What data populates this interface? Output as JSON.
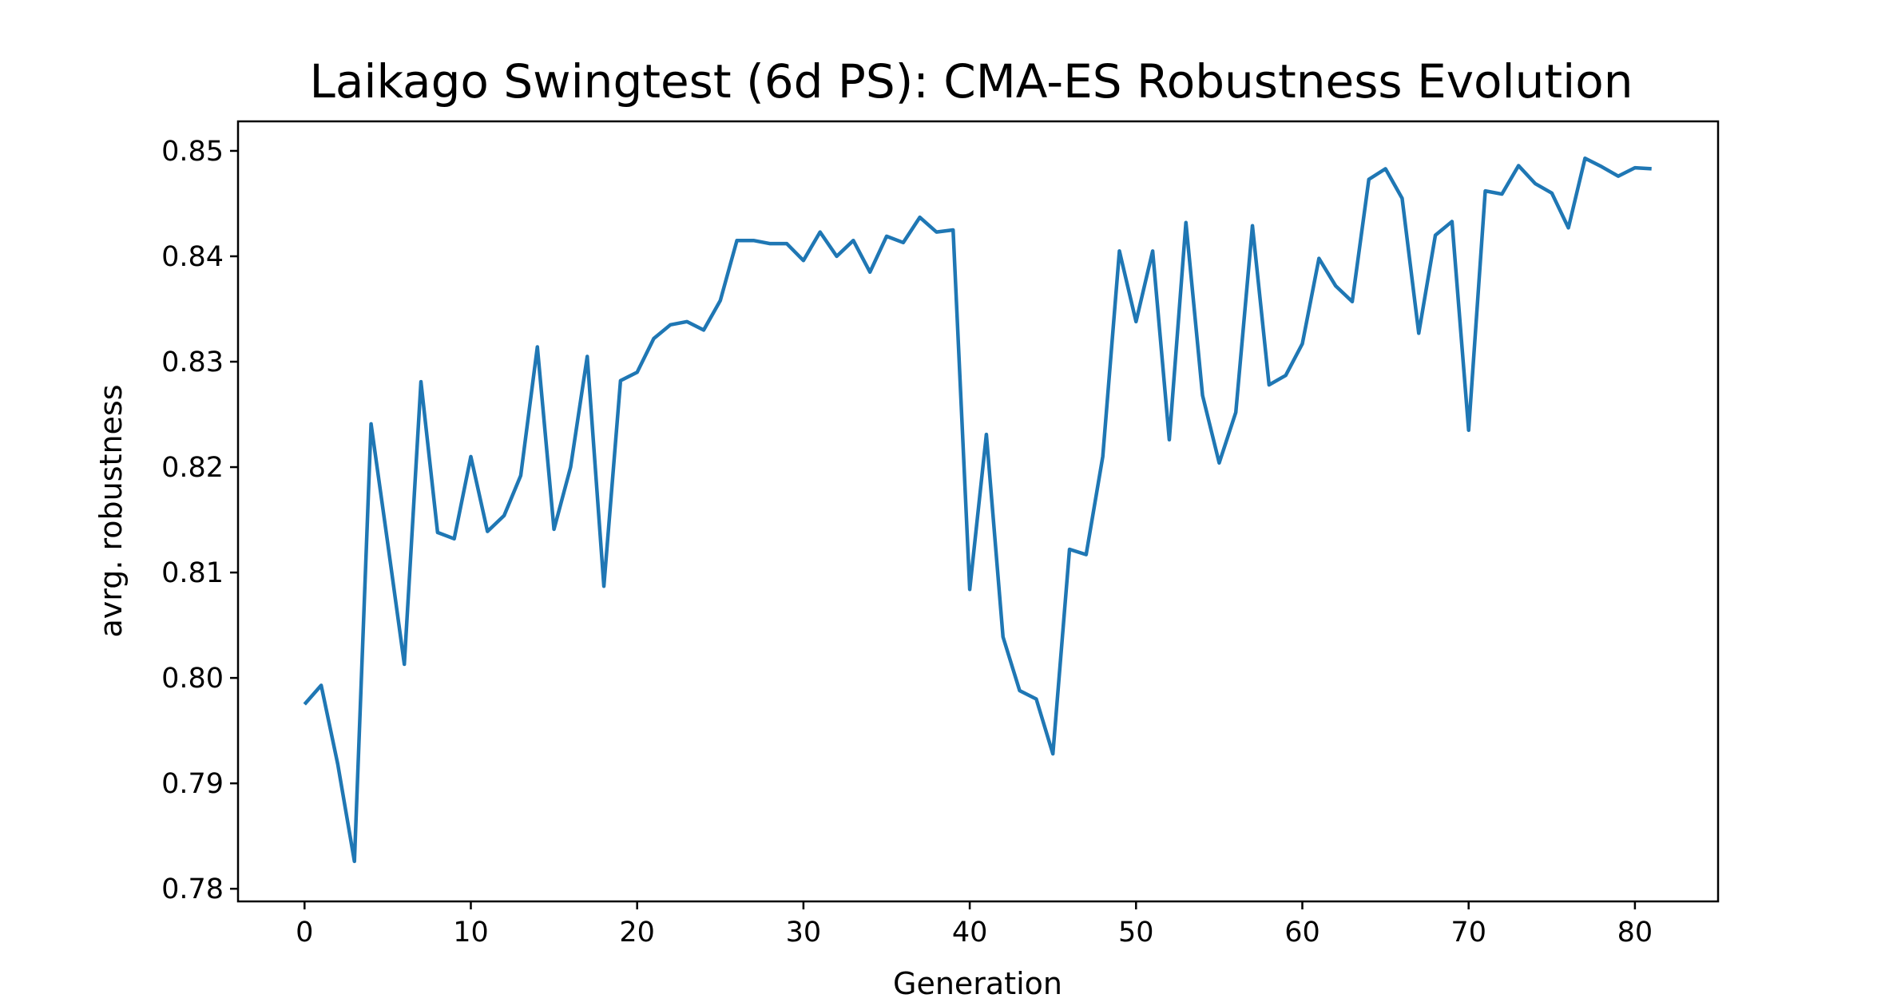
{
  "chart_data": {
    "type": "line",
    "title": "Laikago Swingtest (6d PS): CMA-ES Robustness Evolution",
    "xlabel": "Generation",
    "ylabel": "avrg. robustness",
    "xlim": [
      -4,
      85
    ],
    "ylim": [
      0.7788,
      0.8528
    ],
    "xticks": [
      0,
      10,
      20,
      30,
      40,
      50,
      60,
      70,
      80
    ],
    "yticks": [
      0.78,
      0.79,
      0.8,
      0.81,
      0.82,
      0.83,
      0.84,
      0.85
    ],
    "xtick_labels": [
      "0",
      "10",
      "20",
      "30",
      "40",
      "50",
      "60",
      "70",
      "80"
    ],
    "ytick_labels": [
      "0.78",
      "0.79",
      "0.80",
      "0.81",
      "0.82",
      "0.83",
      "0.84",
      "0.85"
    ],
    "grid": false,
    "legend": "none",
    "series": [
      {
        "color": "#1f77b4",
        "x": [
          0,
          1,
          2,
          3,
          4,
          5,
          6,
          7,
          8,
          9,
          10,
          11,
          12,
          13,
          14,
          15,
          16,
          17,
          18,
          19,
          20,
          21,
          22,
          23,
          24,
          25,
          26,
          27,
          28,
          29,
          30,
          31,
          32,
          33,
          34,
          35,
          36,
          37,
          38,
          39,
          40,
          41,
          42,
          43,
          44,
          45,
          46,
          47,
          48,
          49,
          50,
          51,
          52,
          53,
          54,
          55,
          56,
          57,
          58,
          59,
          60,
          61,
          62,
          63,
          64,
          65,
          66,
          67,
          68,
          69,
          70,
          71,
          72,
          73,
          74,
          75,
          76,
          77,
          78,
          79,
          80,
          81
        ],
        "values": [
          0.7975,
          0.7993,
          0.7918,
          0.7826,
          0.8241,
          0.8128,
          0.8013,
          0.8281,
          0.8138,
          0.8132,
          0.821,
          0.8139,
          0.8154,
          0.8192,
          0.8314,
          0.8141,
          0.82,
          0.8305,
          0.8087,
          0.8282,
          0.829,
          0.8322,
          0.8335,
          0.8338,
          0.833,
          0.8358,
          0.8415,
          0.8415,
          0.8412,
          0.8412,
          0.8396,
          0.8423,
          0.84,
          0.8415,
          0.8385,
          0.8419,
          0.8413,
          0.8437,
          0.8423,
          0.8425,
          0.8084,
          0.8231,
          0.8039,
          0.7988,
          0.798,
          0.7928,
          0.8122,
          0.8117,
          0.821,
          0.8405,
          0.8338,
          0.8405,
          0.8226,
          0.8432,
          0.8268,
          0.8204,
          0.8252,
          0.8429,
          0.8278,
          0.8287,
          0.8317,
          0.8398,
          0.8372,
          0.8357,
          0.8473,
          0.8483,
          0.8455,
          0.8327,
          0.842,
          0.8433,
          0.8235,
          0.8462,
          0.8459,
          0.8486,
          0.8469,
          0.846,
          0.8427,
          0.8493,
          0.8485,
          0.8476,
          0.8484,
          0.8483
        ]
      }
    ]
  }
}
